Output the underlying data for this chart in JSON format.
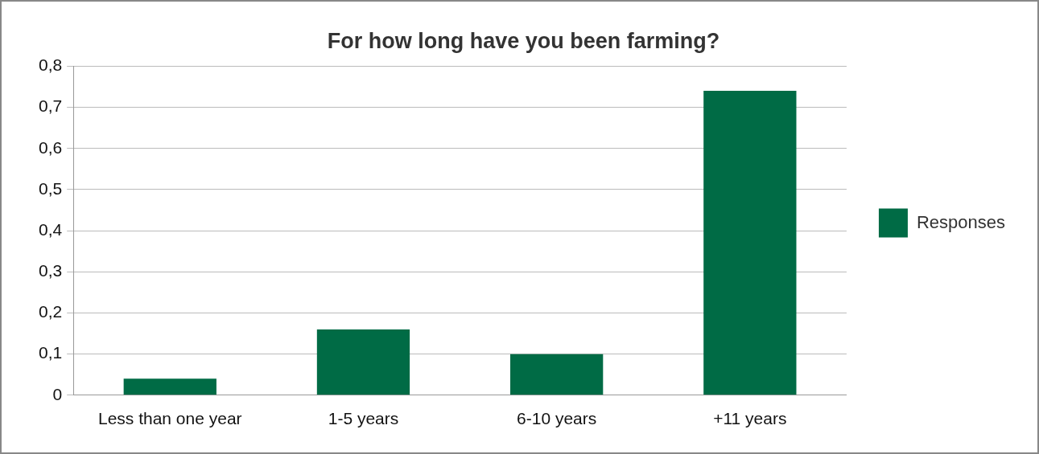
{
  "chart_data": {
    "type": "bar",
    "title": "For how long have you been farming?",
    "categories": [
      "Less than one year",
      "1-5 years",
      "6-10 years",
      "+11 years"
    ],
    "series": [
      {
        "name": "Responses",
        "color": "#006b45",
        "values": [
          0.04,
          0.16,
          0.1,
          0.74
        ]
      }
    ],
    "ylim": [
      0,
      0.8
    ],
    "yticks": [
      {
        "value": 0,
        "label": "0"
      },
      {
        "value": 0.1,
        "label": "0,1"
      },
      {
        "value": 0.2,
        "label": "0,2"
      },
      {
        "value": 0.3,
        "label": "0,3"
      },
      {
        "value": 0.4,
        "label": "0,4"
      },
      {
        "value": 0.5,
        "label": "0,5"
      },
      {
        "value": 0.6,
        "label": "0,6"
      },
      {
        "value": 0.7,
        "label": "0,7"
      },
      {
        "value": 0.8,
        "label": "0,8"
      }
    ],
    "grid": "y",
    "legend": "right"
  }
}
